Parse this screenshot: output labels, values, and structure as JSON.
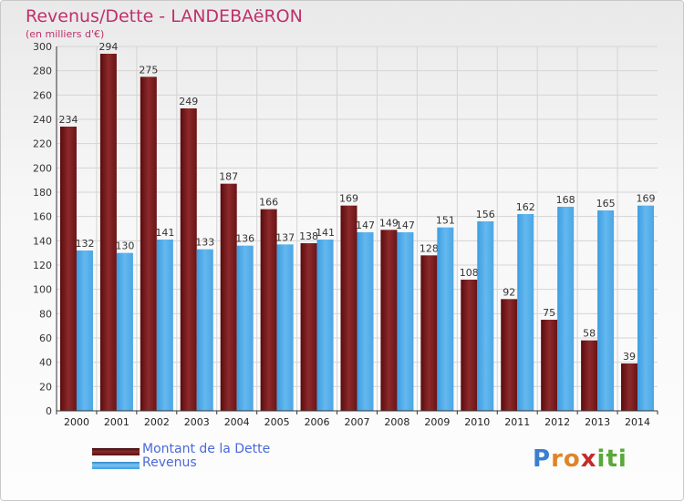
{
  "header": {
    "title": "Revenus/Dette - LANDEBAëRON",
    "subtitle": "(en milliers d'€)"
  },
  "chart_data": {
    "type": "bar",
    "categories": [
      "2000",
      "2001",
      "2002",
      "2003",
      "2004",
      "2005",
      "2006",
      "2007",
      "2008",
      "2009",
      "2010",
      "2011",
      "2012",
      "2013",
      "2014"
    ],
    "series": [
      {
        "name": "Montant de la Dette",
        "color": "#7a1a1c",
        "values": [
          234,
          294,
          275,
          249,
          187,
          166,
          138,
          169,
          149,
          128,
          108,
          92,
          75,
          58,
          39
        ]
      },
      {
        "name": "Revenus",
        "color": "#4aa6e6",
        "values": [
          132,
          130,
          141,
          133,
          136,
          137,
          141,
          147,
          147,
          151,
          156,
          162,
          168,
          165,
          169
        ]
      }
    ],
    "ylim": [
      0,
      300
    ],
    "yticks": [
      0,
      20,
      40,
      60,
      80,
      100,
      120,
      140,
      160,
      180,
      200,
      220,
      240,
      260,
      280,
      300
    ],
    "grid": true,
    "legend_position": "bottom-left"
  },
  "legend": {
    "items": [
      {
        "label": "Montant de la Dette"
      },
      {
        "label": "Revenus"
      }
    ]
  },
  "logo": {
    "letters": [
      "P",
      "r",
      "o",
      "x",
      "i",
      "t",
      "i"
    ],
    "colors": [
      "#3a7fd0",
      "#e0842a",
      "#e0842a",
      "#c52a2a",
      "#5aa83a",
      "#5aa83a",
      "#5aa83a"
    ]
  }
}
